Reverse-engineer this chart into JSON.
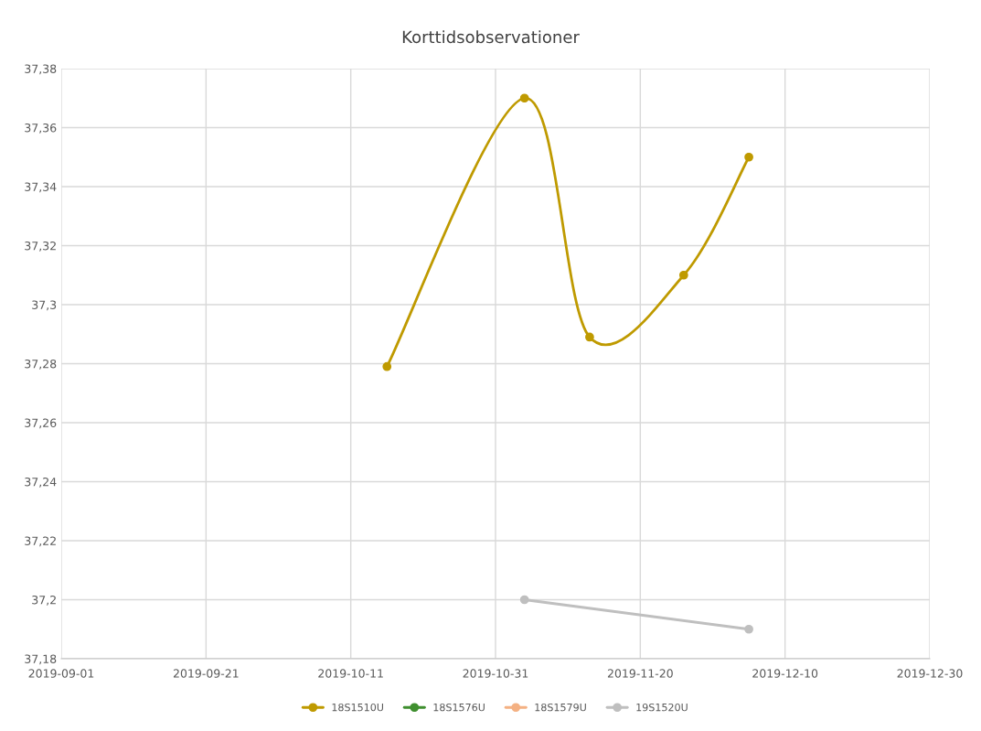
{
  "chart_data": {
    "type": "line",
    "title": "Korttidsobservationer",
    "series": [
      {
        "name": "18S1510U",
        "color": "#bf9a00",
        "x": [
          "2019-10-16",
          "2019-11-04",
          "2019-11-13",
          "2019-11-26",
          "2019-12-05"
        ],
        "values": [
          37.279,
          37.37,
          37.289,
          37.31,
          37.35
        ]
      },
      {
        "name": "18S1576U",
        "color": "#3f8f2f"
      },
      {
        "name": "18S1579U",
        "color": "#f4b183"
      },
      {
        "name": "19S1520U",
        "color": "#bfbfbf",
        "x": [
          "2019-11-04",
          "2019-12-05"
        ],
        "values": [
          37.2,
          37.19
        ]
      }
    ],
    "xlim": [
      "2019-09-01",
      "2019-12-30"
    ],
    "xticks": [
      "2019-09-01",
      "2019-09-21",
      "2019-10-11",
      "2019-10-31",
      "2019-11-20",
      "2019-12-10",
      "2019-12-30"
    ],
    "ylim": [
      37.18,
      37.38
    ],
    "yticks": [
      {
        "value": 37.18,
        "label": "37,18"
      },
      {
        "value": 37.2,
        "label": "37,2"
      },
      {
        "value": 37.22,
        "label": "37,22"
      },
      {
        "value": 37.24,
        "label": "37,24"
      },
      {
        "value": 37.26,
        "label": "37,26"
      },
      {
        "value": 37.28,
        "label": "37,28"
      },
      {
        "value": 37.3,
        "label": "37,3"
      },
      {
        "value": 37.32,
        "label": "37,32"
      },
      {
        "value": 37.34,
        "label": "37,34"
      },
      {
        "value": 37.36,
        "label": "37,36"
      },
      {
        "value": 37.38,
        "label": "37,38"
      }
    ],
    "grid": true,
    "legend": "bottom",
    "marker": "circle",
    "line_style": "solid"
  }
}
